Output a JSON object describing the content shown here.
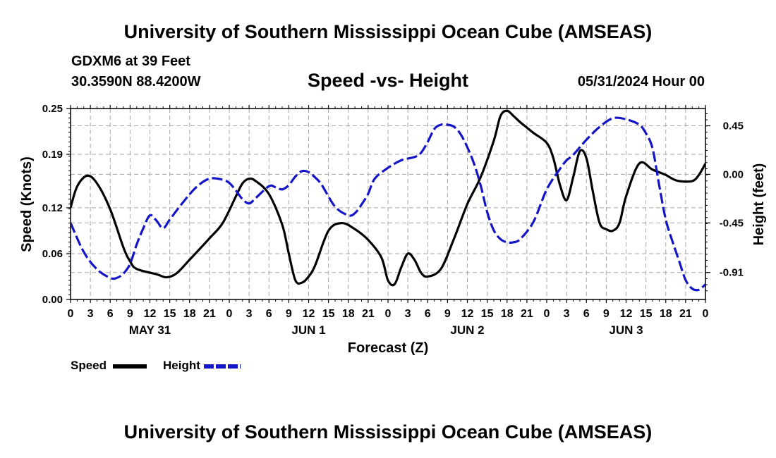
{
  "header": {
    "title": "University of Southern Mississippi Ocean Cube (AMSEAS)",
    "station": "GDXM6 at 39 Feet",
    "coords": "30.3590N  88.4200W",
    "subtitle": "Speed -vs- Height",
    "date_hour": "05/31/2024 Hour 00"
  },
  "footer": {
    "title": "University of Southern Mississippi Ocean Cube (AMSEAS)"
  },
  "legend": {
    "speed": "Speed",
    "height": "Height",
    "speed_color": "#000000",
    "height_color": "#1515c8"
  },
  "chart_data": {
    "type": "line",
    "title": "Speed -vs- Height",
    "xlabel": "Forecast (Z)",
    "ylabel": "Speed (Knots)",
    "y2label": "Height (feet)",
    "x_unit": "hours since 05/31/2024 00Z",
    "xlim": [
      0,
      96
    ],
    "ylim": [
      0,
      0.25
    ],
    "y2lim": [
      -1.16,
      0.61
    ],
    "x_ticks": [
      0,
      3,
      6,
      9,
      12,
      15,
      18,
      21,
      24,
      27,
      30,
      33,
      36,
      39,
      42,
      45,
      48,
      51,
      54,
      57,
      60,
      63,
      66,
      69,
      72,
      75,
      78,
      81,
      84,
      87,
      90,
      93,
      96
    ],
    "x_tick_labels": [
      "0",
      "3",
      "6",
      "9",
      "12",
      "15",
      "18",
      "21",
      "0",
      "3",
      "6",
      "9",
      "12",
      "15",
      "18",
      "21",
      "0",
      "3",
      "6",
      "9",
      "12",
      "15",
      "18",
      "21",
      "0",
      "3",
      "6",
      "9",
      "12",
      "15",
      "18",
      "21",
      "0"
    ],
    "day_labels": [
      {
        "x": 12,
        "label": "MAY 31"
      },
      {
        "x": 36,
        "label": "JUN 1"
      },
      {
        "x": 60,
        "label": "JUN 2"
      },
      {
        "x": 84,
        "label": "JUN 3"
      }
    ],
    "y_ticks": [
      0,
      0.06,
      0.12,
      0.19,
      0.25
    ],
    "y_tick_labels": [
      "0.00",
      "0.06",
      "0.12",
      "0.19",
      "0.25"
    ],
    "y2_ticks": [
      -0.91,
      -0.45,
      0.0,
      0.45
    ],
    "y2_tick_labels": [
      "-0.91",
      "-0.45",
      "0.00",
      "0.45"
    ],
    "grid": true,
    "series": [
      {
        "name": "Speed",
        "axis": "left",
        "color": "#000000",
        "style": "solid",
        "x": [
          0,
          1,
          2.5,
          4,
          6,
          8,
          9,
          10,
          13,
          14.5,
          16,
          18,
          21,
          23,
          25,
          26,
          27,
          28,
          30,
          32,
          33,
          34,
          35,
          36,
          37,
          39,
          41,
          43,
          45,
          47,
          48,
          49,
          50,
          51,
          52,
          53,
          54,
          56,
          58,
          60,
          62,
          64,
          65,
          66,
          67,
          68,
          69,
          70,
          72,
          73,
          74,
          75,
          76,
          77,
          78,
          79,
          80,
          81,
          82,
          83,
          84,
          86,
          88,
          90,
          91,
          92,
          94,
          95,
          96
        ],
        "values": [
          0.12,
          0.148,
          0.162,
          0.152,
          0.118,
          0.068,
          0.05,
          0.04,
          0.033,
          0.029,
          0.034,
          0.052,
          0.08,
          0.1,
          0.135,
          0.152,
          0.158,
          0.155,
          0.138,
          0.098,
          0.06,
          0.025,
          0.022,
          0.03,
          0.045,
          0.09,
          0.1,
          0.092,
          0.078,
          0.055,
          0.025,
          0.02,
          0.042,
          0.06,
          0.052,
          0.035,
          0.03,
          0.04,
          0.08,
          0.125,
          0.16,
          0.208,
          0.24,
          0.247,
          0.24,
          0.232,
          0.225,
          0.218,
          0.205,
          0.185,
          0.15,
          0.13,
          0.16,
          0.194,
          0.185,
          0.14,
          0.1,
          0.092,
          0.09,
          0.1,
          0.135,
          0.178,
          0.17,
          0.163,
          0.158,
          0.155,
          0.155,
          0.163,
          0.178
        ]
      },
      {
        "name": "Height",
        "axis": "right",
        "color": "#1515c8",
        "style": "dashed",
        "x": [
          0,
          2,
          4,
          6,
          7,
          8,
          9,
          10,
          11,
          12,
          13,
          14,
          15,
          17,
          19,
          21,
          23,
          24,
          25,
          26,
          27,
          28,
          30,
          31,
          32,
          33,
          34,
          35,
          36,
          37,
          38,
          40,
          42,
          43,
          44,
          45,
          46,
          48,
          50,
          52,
          53,
          54,
          55,
          56,
          57,
          58,
          59,
          60,
          61,
          62,
          63,
          64,
          65,
          66,
          67,
          68,
          70,
          72,
          74,
          75,
          76,
          78,
          80,
          82,
          84,
          86,
          87,
          88,
          89,
          90,
          91,
          92,
          93,
          94,
          95,
          96
        ],
        "values": [
          -0.45,
          -0.72,
          -0.88,
          -0.96,
          -0.96,
          -0.92,
          -0.83,
          -0.65,
          -0.5,
          -0.38,
          -0.43,
          -0.5,
          -0.42,
          -0.26,
          -0.12,
          -0.04,
          -0.05,
          -0.08,
          -0.15,
          -0.23,
          -0.27,
          -0.22,
          -0.11,
          -0.12,
          -0.14,
          -0.1,
          -0.02,
          0.03,
          0.02,
          -0.03,
          -0.1,
          -0.3,
          -0.38,
          -0.36,
          -0.28,
          -0.18,
          -0.04,
          0.06,
          0.13,
          0.16,
          0.2,
          0.3,
          0.42,
          0.46,
          0.46,
          0.44,
          0.37,
          0.25,
          0.1,
          -0.1,
          -0.35,
          -0.52,
          -0.6,
          -0.63,
          -0.63,
          -0.6,
          -0.44,
          -0.14,
          0.05,
          0.13,
          0.18,
          0.32,
          0.44,
          0.52,
          0.51,
          0.46,
          0.38,
          0.24,
          -0.1,
          -0.42,
          -0.62,
          -0.8,
          -0.98,
          -1.06,
          -1.07,
          -1.02
        ]
      }
    ]
  }
}
